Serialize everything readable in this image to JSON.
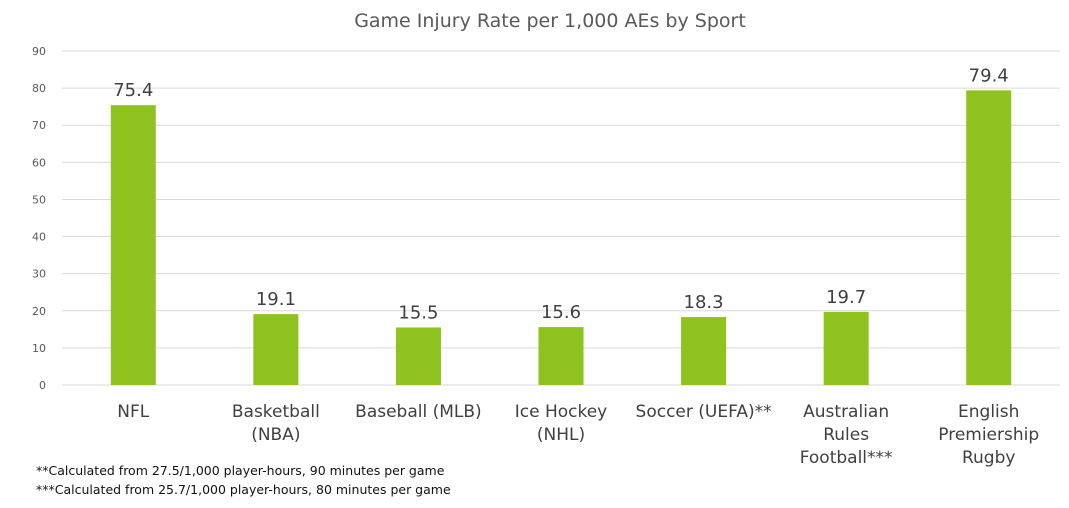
{
  "chart_data": {
    "type": "bar",
    "title": "Game Injury Rate per 1,000 AEs by Sport",
    "categories": [
      [
        "NFL"
      ],
      [
        "Basketball",
        "(NBA)"
      ],
      [
        "Baseball (MLB)"
      ],
      [
        "Ice Hockey",
        "(NHL)"
      ],
      [
        "Soccer (UEFA)**"
      ],
      [
        "Australian",
        "Rules",
        "Football***"
      ],
      [
        "English",
        "Premiership",
        "Rugby"
      ]
    ],
    "values": [
      75.4,
      19.1,
      15.5,
      15.6,
      18.3,
      19.7,
      79.4
    ],
    "value_labels": [
      "75.4",
      "19.1",
      "15.5",
      "15.6",
      "18.3",
      "19.7",
      "79.4"
    ],
    "ylim": [
      0,
      90
    ],
    "yticks": [
      0,
      10,
      20,
      30,
      40,
      50,
      60,
      70,
      80,
      90
    ],
    "grid": true,
    "bar_color": "#8dc21f",
    "grid_color": "#d9d9d9"
  },
  "footnotes": [
    "**Calculated from 27.5/1,000 player-hours, 90 minutes per game",
    "***Calculated from 25.7/1,000 player-hours, 80 minutes per game"
  ]
}
